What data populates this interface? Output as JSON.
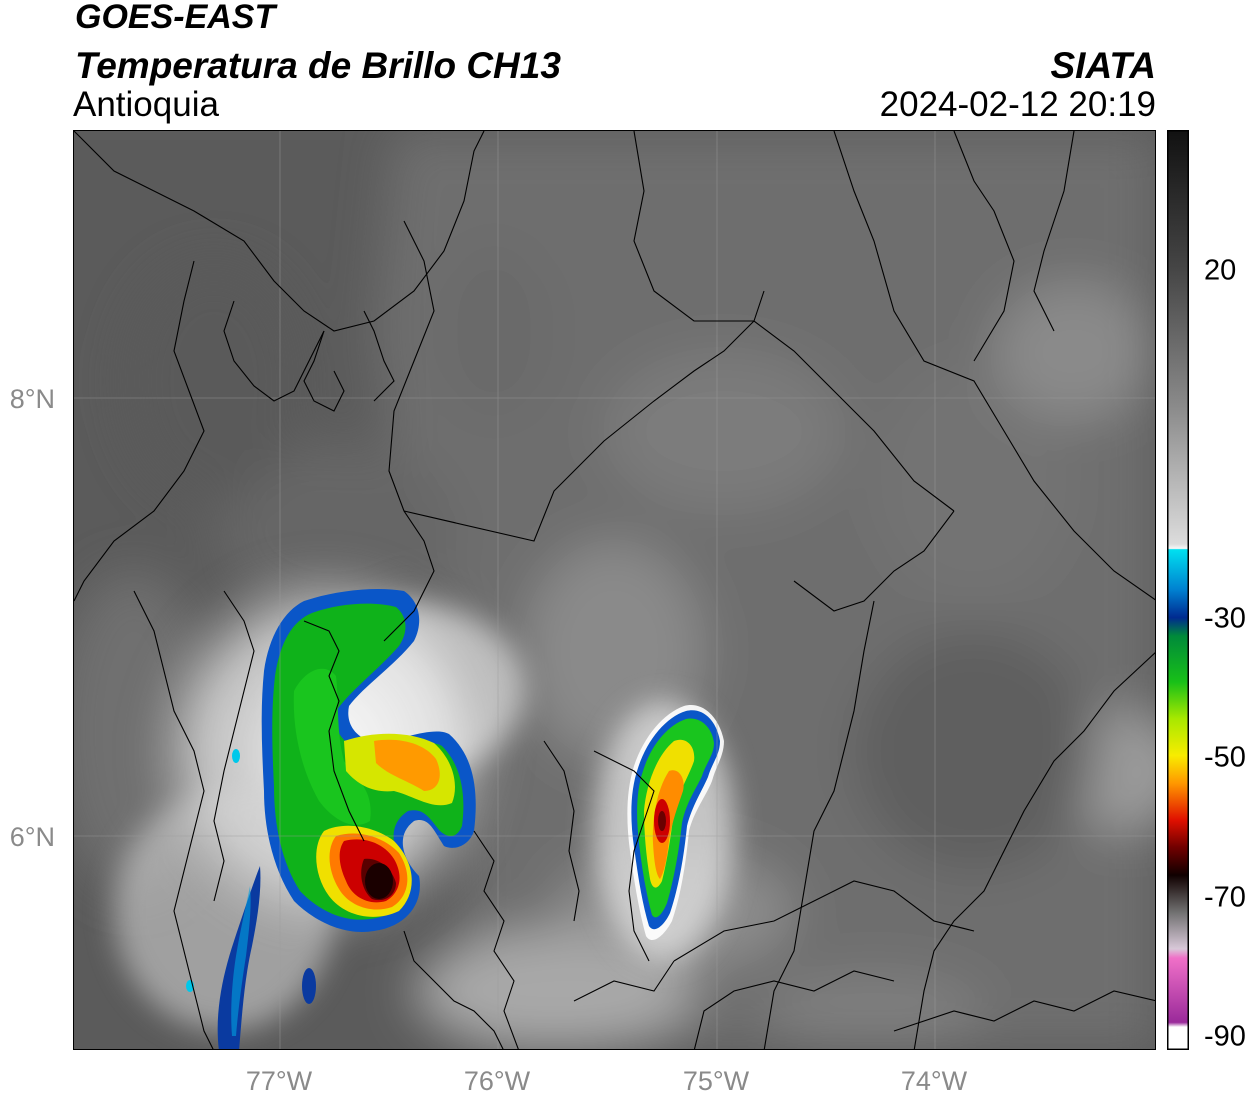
{
  "header": {
    "satellite": "GOES-EAST",
    "product": "Temperatura de Brillo CH13",
    "region": "Antioquia",
    "agency": "SIATA",
    "datetime": "2024-02-12 20:19"
  },
  "map": {
    "latitude_labels": [
      "8°N",
      "6°N"
    ],
    "longitude_labels": [
      "77°W",
      "76°W",
      "75°W",
      "74°W"
    ]
  },
  "colorbar": {
    "labels": [
      "20",
      "-30",
      "-50",
      "-70",
      "-90"
    ]
  },
  "colors": {
    "ocean_gray": "#555555",
    "land_gray": "#6b6b6b",
    "cold_cloud_white": "#f2f2f2",
    "cloud_cyan": "#00d6f0",
    "cloud_blue": "#003a9a",
    "cloud_green": "#19c51e",
    "cloud_yellow": "#f4ec00",
    "cloud_orange": "#ff8c00",
    "cloud_red": "#d00000",
    "cloud_darkred": "#3a0000",
    "cloud_magenta": "#b02aa6"
  }
}
